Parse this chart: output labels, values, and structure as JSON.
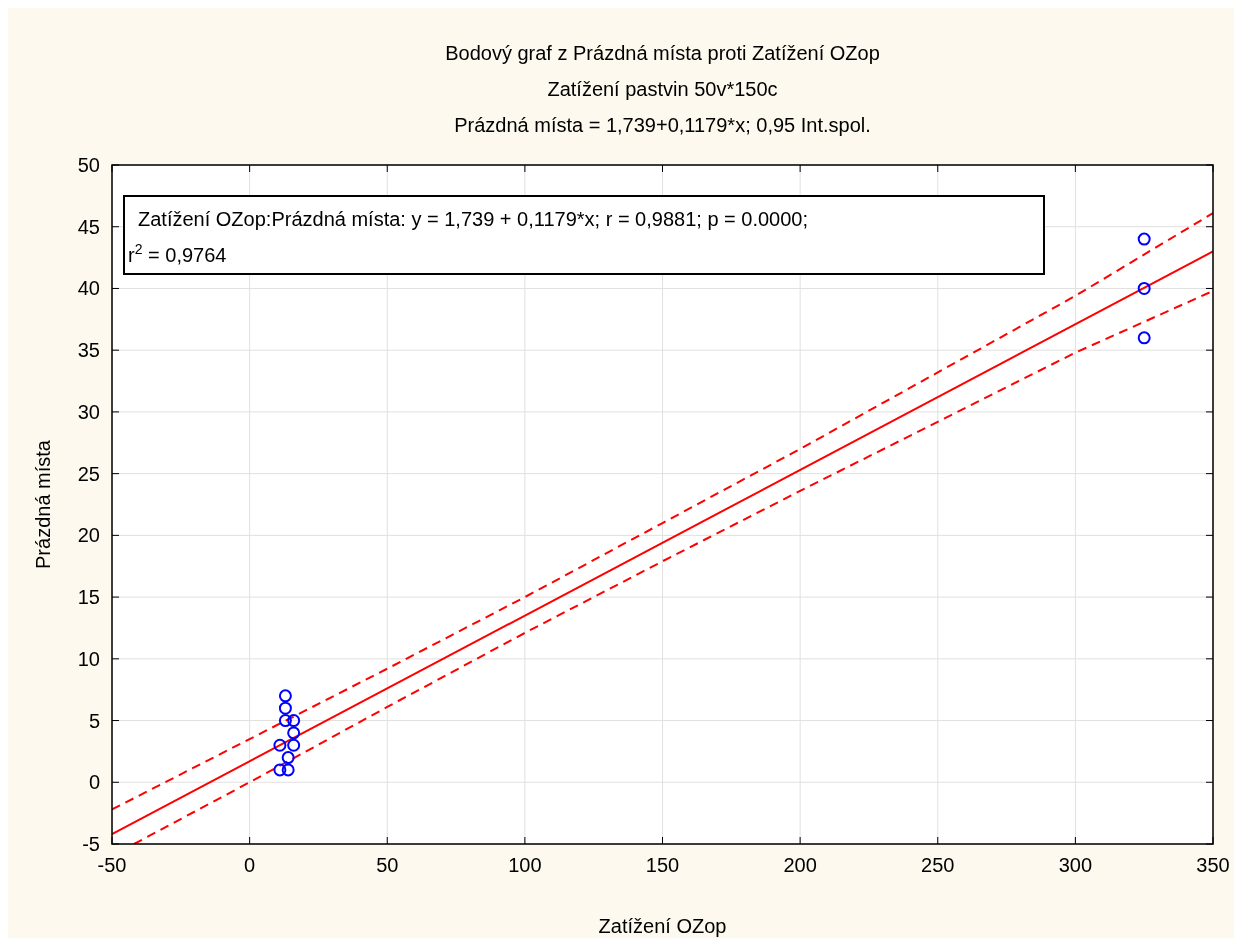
{
  "chart_data": {
    "type": "scatter",
    "title": "Bodový graf z Prázdná místa proti Zatížení OZop",
    "subtitle": "Zatížení pastvin 50v*150c\nPrázdná místa = 1,739+0,1179*x; 0,95 Int.spol.",
    "xlabel": "Zatížení OZop",
    "ylabel": "Prázdná místa",
    "annotations": [
      "Zatížení OZop:Prázdná místa:   y = 1,739 + 0,1179*x;  r = 0,9881; p = 0.0000;",
      "r$^{2}$ = 0,9764"
    ],
    "xlim": [
      -50,
      350
    ],
    "xticks": [
      -50,
      0,
      50,
      100,
      150,
      200,
      250,
      300,
      350
    ],
    "ylim": [
      -5,
      50
    ],
    "yticks": [
      -5,
      0,
      5,
      10,
      15,
      20,
      25,
      30,
      35,
      40,
      45,
      50
    ],
    "grid": true,
    "series": [
      {
        "type": "scatter",
        "color": "#0000ff",
        "marker": "circle",
        "x": [
          11,
          14,
          14,
          11,
          16,
          16,
          16,
          13,
          13,
          13,
          325,
          325,
          325
        ],
        "values": [
          1,
          1,
          2,
          3,
          3,
          4,
          5,
          5,
          6,
          7,
          36,
          40,
          44
        ]
      },
      {
        "type": "line",
        "color": "#ff0000",
        "line_style": "solid",
        "x": [
          -50,
          350
        ],
        "values": [
          -4.2,
          43.0
        ]
      },
      {
        "type": "line",
        "color": "#ff0000",
        "line_style": "dashed",
        "x": [
          -50,
          0,
          50,
          100,
          150,
          200,
          250,
          300,
          350
        ],
        "values": [
          -2.2,
          3.5,
          9.2,
          15.0,
          21.0,
          27.0,
          33.2,
          39.4,
          46.1
        ]
      },
      {
        "type": "line",
        "color": "#ff0000",
        "line_style": "dashed",
        "x": [
          -42,
          0,
          50,
          100,
          150,
          200,
          250,
          300,
          350
        ],
        "values": [
          -5.0,
          0,
          6.1,
          12.1,
          17.9,
          23.6,
          29.2,
          34.8,
          39.8
        ]
      }
    ]
  }
}
